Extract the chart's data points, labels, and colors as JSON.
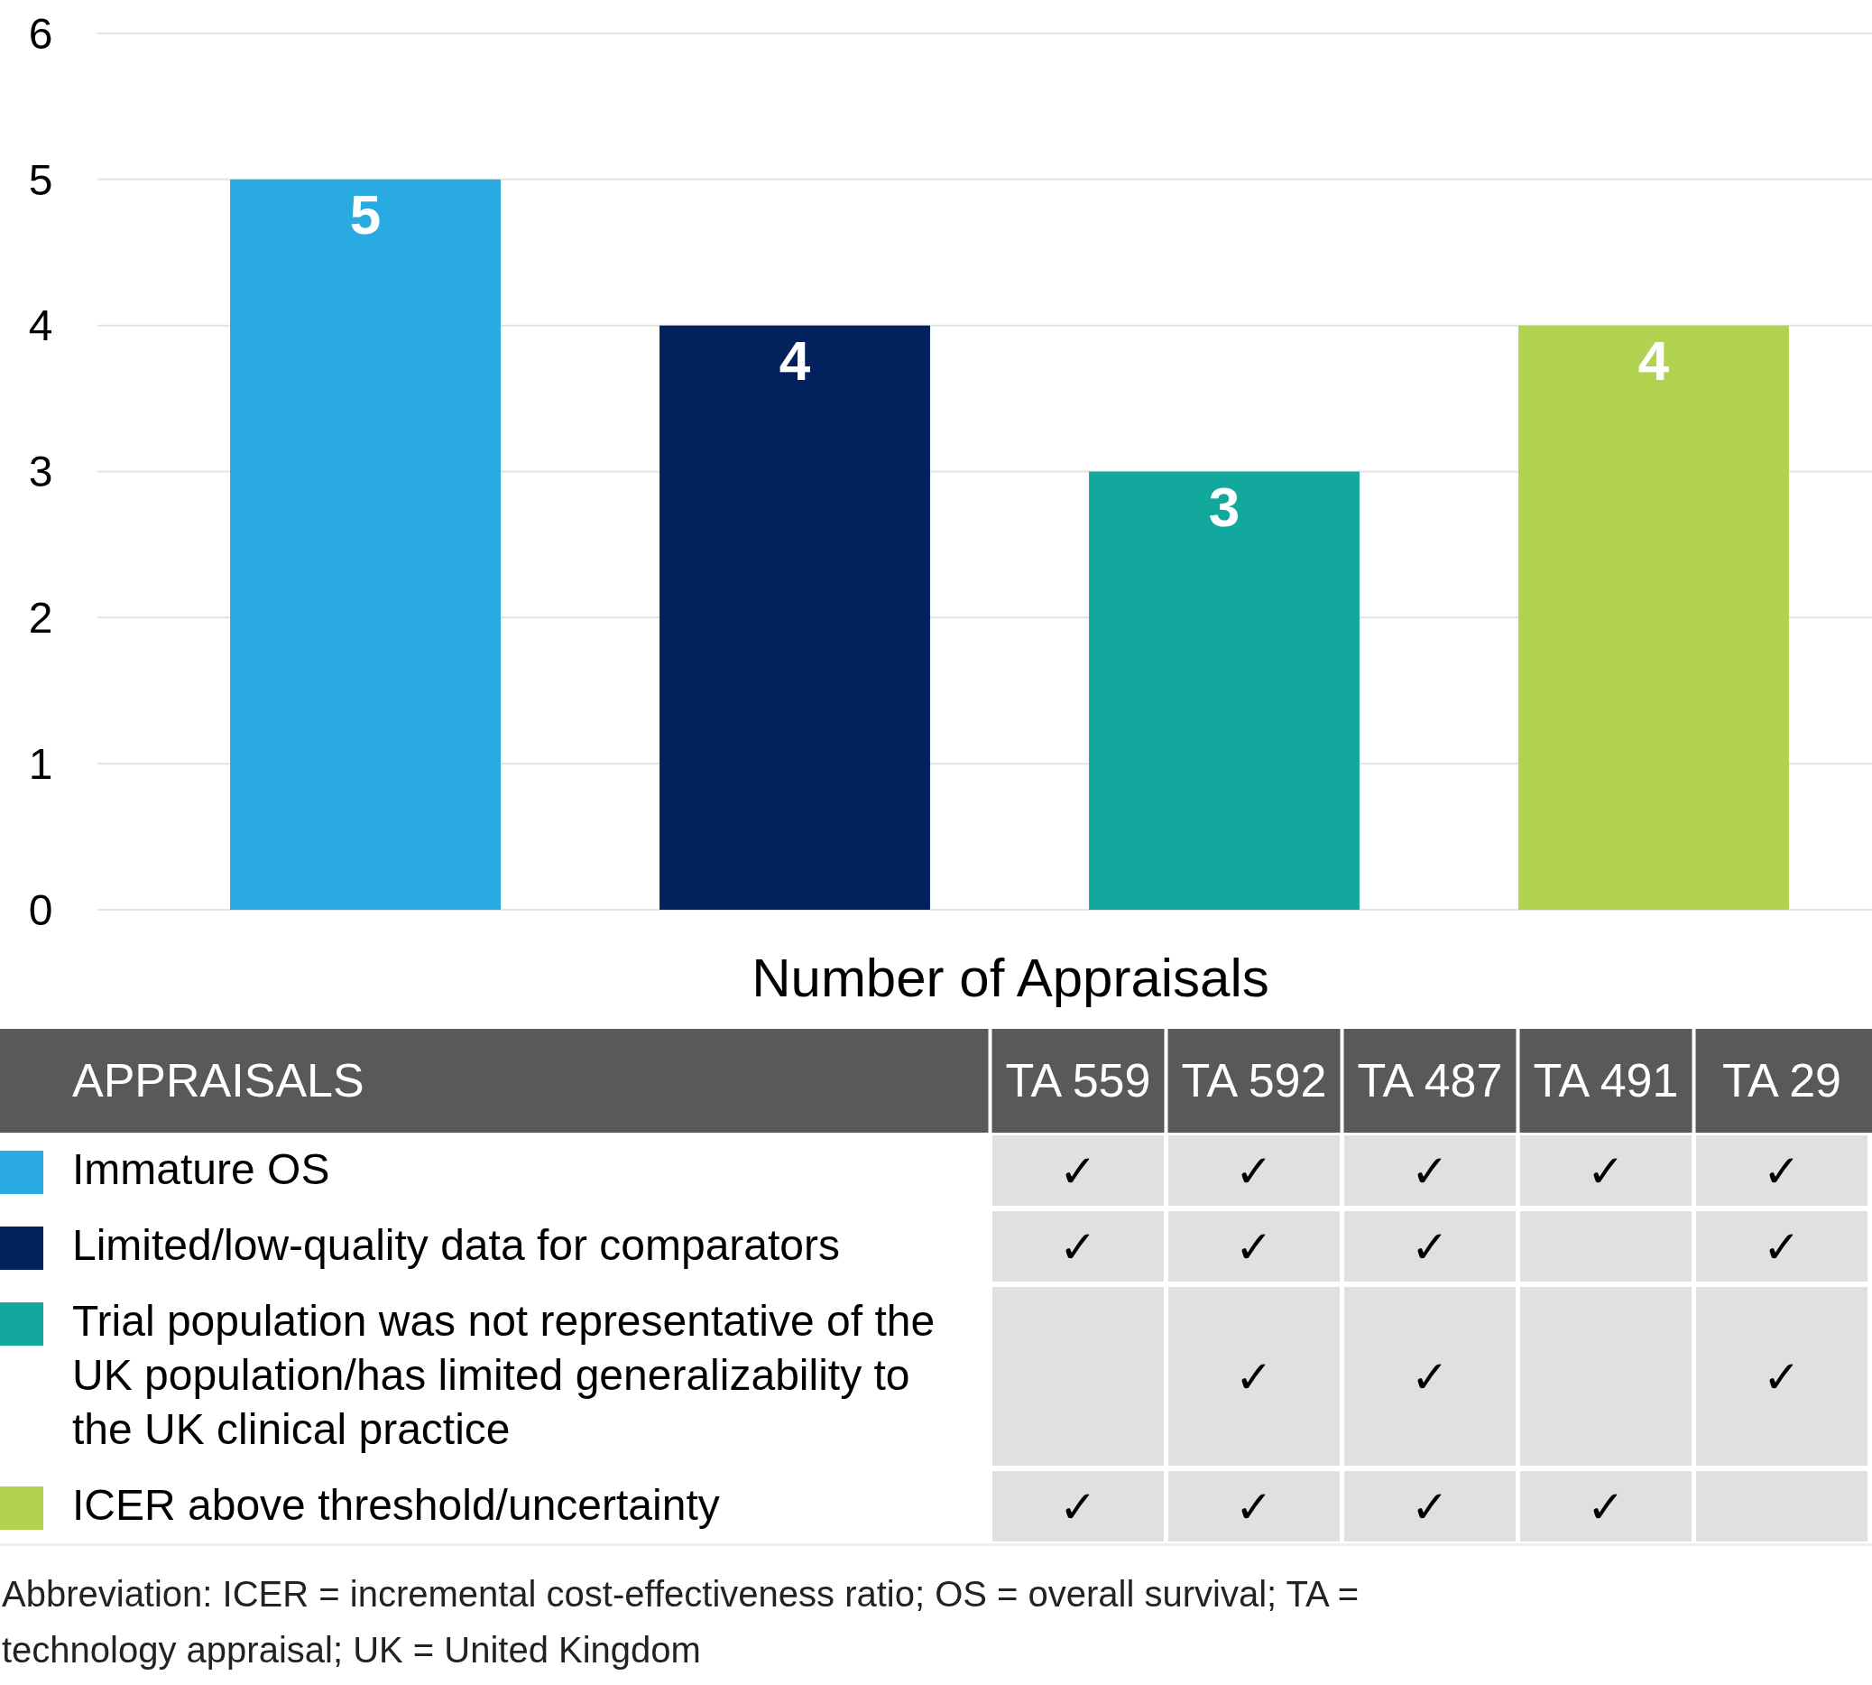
{
  "chart_data": [
    {
      "type": "bar",
      "categories": [
        null,
        null,
        null,
        null
      ],
      "xlabel": "Number of Appraisals",
      "ylim": [
        0,
        6
      ],
      "yticks": [
        0,
        1,
        2,
        3,
        4,
        5,
        6
      ],
      "grid": "y",
      "data_labels": true,
      "series": [
        {
          "color": "#29aae1",
          "values": [
            5,
            null,
            null,
            null
          ]
        },
        {
          "color": "#03215c",
          "values": [
            null,
            4,
            null,
            null
          ]
        },
        {
          "color": "#13a89e",
          "values": [
            null,
            null,
            3,
            null
          ]
        },
        {
          "color": "#b2d34f",
          "values": [
            null,
            null,
            null,
            4
          ]
        }
      ],
      "annotations": [
        "Abbreviation: ICER = incremental cost-effectiveness ratio; OS = overall survival; TA = technology appraisal; UK = United Kingdom"
      ]
    },
    {
      "type": "heatmap",
      "title": "APPRAISALS",
      "categories": [
        "TA 559",
        "TA 592",
        "TA 487",
        "TA 491",
        "TA 29"
      ],
      "y_categories": [
        "Immature OS",
        "Limited/low-quality data for comparators",
        "Trial population was not representative of the UK population/has limited generalizability to the UK clinical practice",
        "ICER above threshold/uncertainty"
      ],
      "cells": [
        [
          "✓",
          "✓",
          "✓",
          "✓",
          "✓"
        ],
        [
          "✓",
          "✓",
          "✓",
          null,
          "✓"
        ],
        [
          null,
          "✓",
          "✓",
          null,
          "✓"
        ],
        [
          "✓",
          "✓",
          "✓",
          "✓",
          null
        ]
      ]
    }
  ]
}
